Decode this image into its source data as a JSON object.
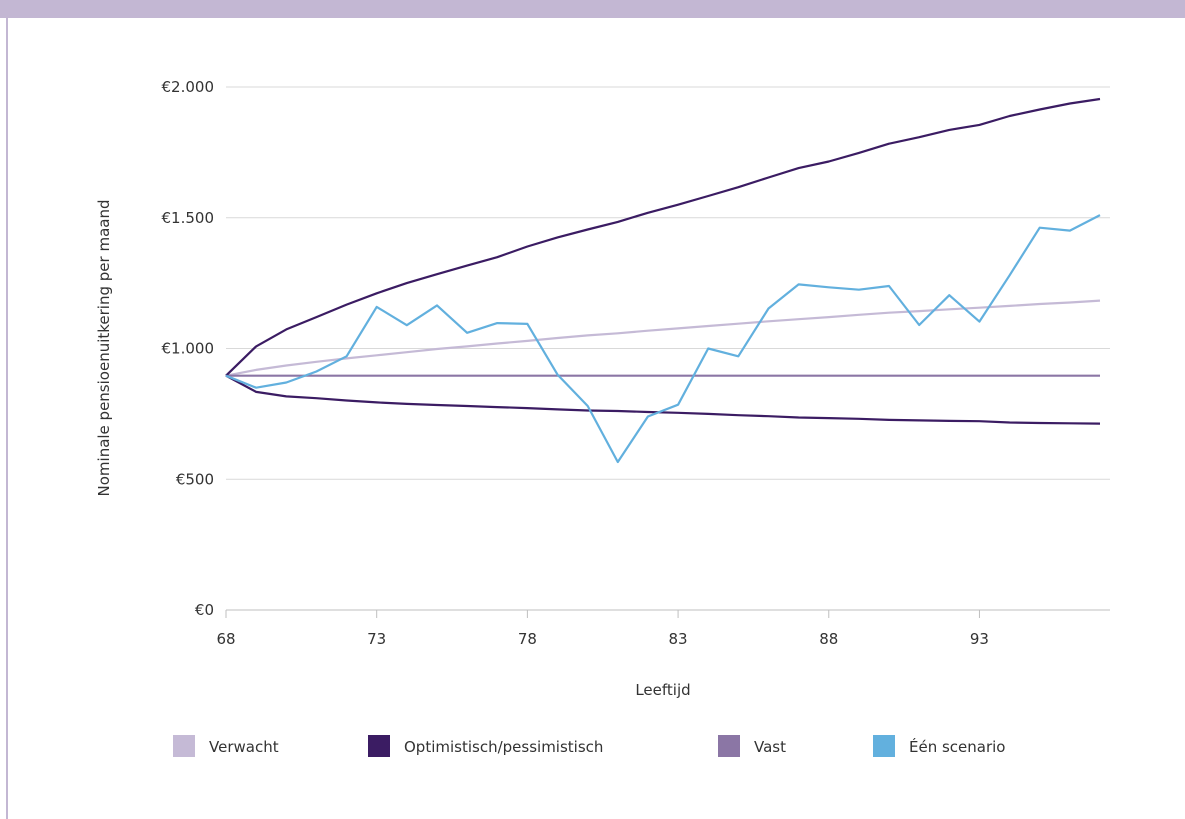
{
  "chart_data": {
    "type": "line",
    "xlabel": "Leeftijd",
    "ylabel": "Nominale pensioenuitkering per maand",
    "xlim": [
      68,
      97
    ],
    "ylim": [
      0,
      2000
    ],
    "x_ticks": [
      68,
      73,
      78,
      83,
      88,
      93
    ],
    "y_ticks": [
      0,
      500,
      1000,
      1500,
      2000
    ],
    "y_tick_labels": [
      "€0",
      "€500",
      "€1.000",
      "€1.500",
      "€2.000"
    ],
    "grid": "horizontal",
    "legend_position": "bottom",
    "x": [
      68,
      69,
      70,
      71,
      72,
      73,
      74,
      75,
      76,
      77,
      78,
      79,
      80,
      81,
      82,
      83,
      84,
      85,
      86,
      87,
      88,
      89,
      90,
      91,
      92,
      93,
      94,
      95,
      96,
      97
    ],
    "series": [
      {
        "name": "Verwacht",
        "color": "#c5bad6",
        "values": [
          896,
          918,
          935,
          949,
          962,
          974,
          986,
          998,
          1008,
          1019,
          1029,
          1040,
          1050,
          1058,
          1068,
          1077,
          1086,
          1095,
          1104,
          1112,
          1120,
          1129,
          1137,
          1143,
          1150,
          1156,
          1163,
          1170,
          1176,
          1183
        ]
      },
      {
        "name": "Optimistisch/pessimistisch",
        "color": "#3b1c63",
        "legend": true,
        "values": [
          896,
          1008,
          1073,
          1120,
          1168,
          1211,
          1250,
          1284,
          1317,
          1349,
          1390,
          1425,
          1455,
          1484,
          1519,
          1550,
          1583,
          1617,
          1654,
          1690,
          1715,
          1748,
          1783,
          1808,
          1836,
          1855,
          1889,
          1914,
          1937,
          1954
        ]
      },
      {
        "name": "",
        "color": "#3b1c63",
        "legend": false,
        "values": [
          896,
          834,
          817,
          810,
          801,
          794,
          788,
          784,
          780,
          776,
          772,
          767,
          763,
          761,
          757,
          754,
          750,
          745,
          741,
          736,
          734,
          731,
          727,
          725,
          723,
          722,
          717,
          715,
          714,
          713
        ]
      },
      {
        "name": "Vast",
        "color": "#8b76a5",
        "values": [
          896,
          896,
          896,
          896,
          896,
          896,
          896,
          896,
          896,
          896,
          896,
          896,
          896,
          896,
          896,
          896,
          896,
          896,
          896,
          896,
          896,
          896,
          896,
          896,
          896,
          896,
          896,
          896,
          896,
          896
        ]
      },
      {
        "name": "Één scenario",
        "color": "#62b0de",
        "values": [
          896,
          850,
          870,
          912,
          970,
          1159,
          1089,
          1165,
          1060,
          1097,
          1094,
          900,
          780,
          566,
          740,
          785,
          1000,
          970,
          1153,
          1245,
          1234,
          1225,
          1239,
          1090,
          1204,
          1103,
          1280,
          1462,
          1451,
          1510
        ]
      }
    ]
  }
}
